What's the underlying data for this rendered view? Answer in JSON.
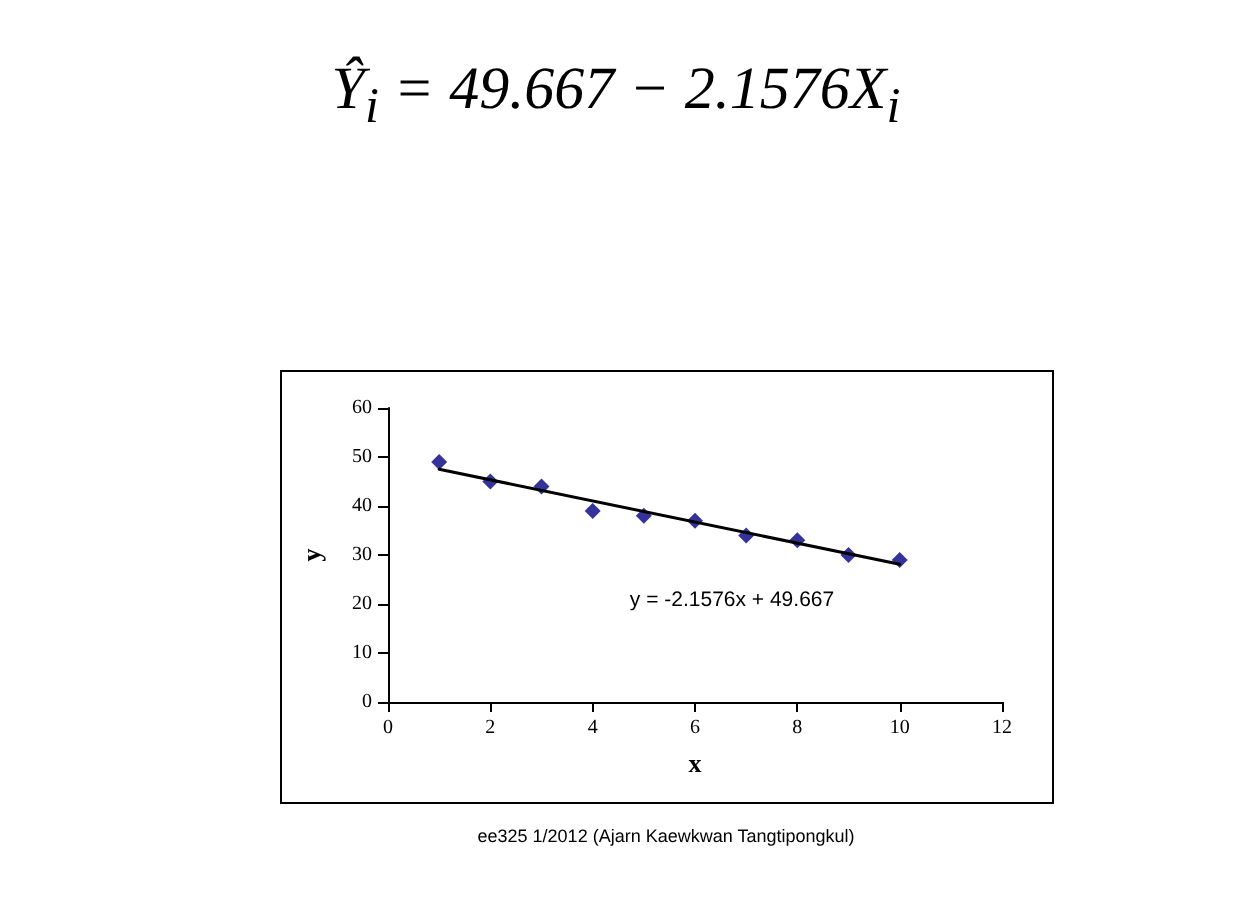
{
  "chart_data": {
    "type": "scatter",
    "title": "Ŷ$_{i}$ = 49.667 − 2.1576X$_{i}$",
    "xlabel": "x",
    "ylabel": "y",
    "x": [
      1,
      2,
      3,
      4,
      5,
      6,
      7,
      8,
      9,
      10
    ],
    "series": [
      {
        "color": "#000080",
        "values": [
          49,
          45,
          44,
          39,
          38,
          37,
          34,
          33,
          30,
          29
        ],
        "marker": "diamond"
      },
      {
        "type": "line",
        "color": "#000000",
        "x": [
          1,
          10
        ],
        "values": [
          47.5,
          28.1
        ],
        "marker": "none",
        "line_style": "solid"
      }
    ],
    "xlim": [
      0,
      12
    ],
    "xticks": [
      0,
      2,
      4,
      6,
      8,
      10,
      12
    ],
    "ylim": [
      0,
      60
    ],
    "yticks": [
      0,
      10,
      20,
      30,
      40,
      50,
      60
    ],
    "grid": false,
    "annotations": [
      "y = -2.1576x + 49.667",
      "ee325 1/2012 (Ajarn Kaewkwan Tangtipongkul)"
    ]
  }
}
